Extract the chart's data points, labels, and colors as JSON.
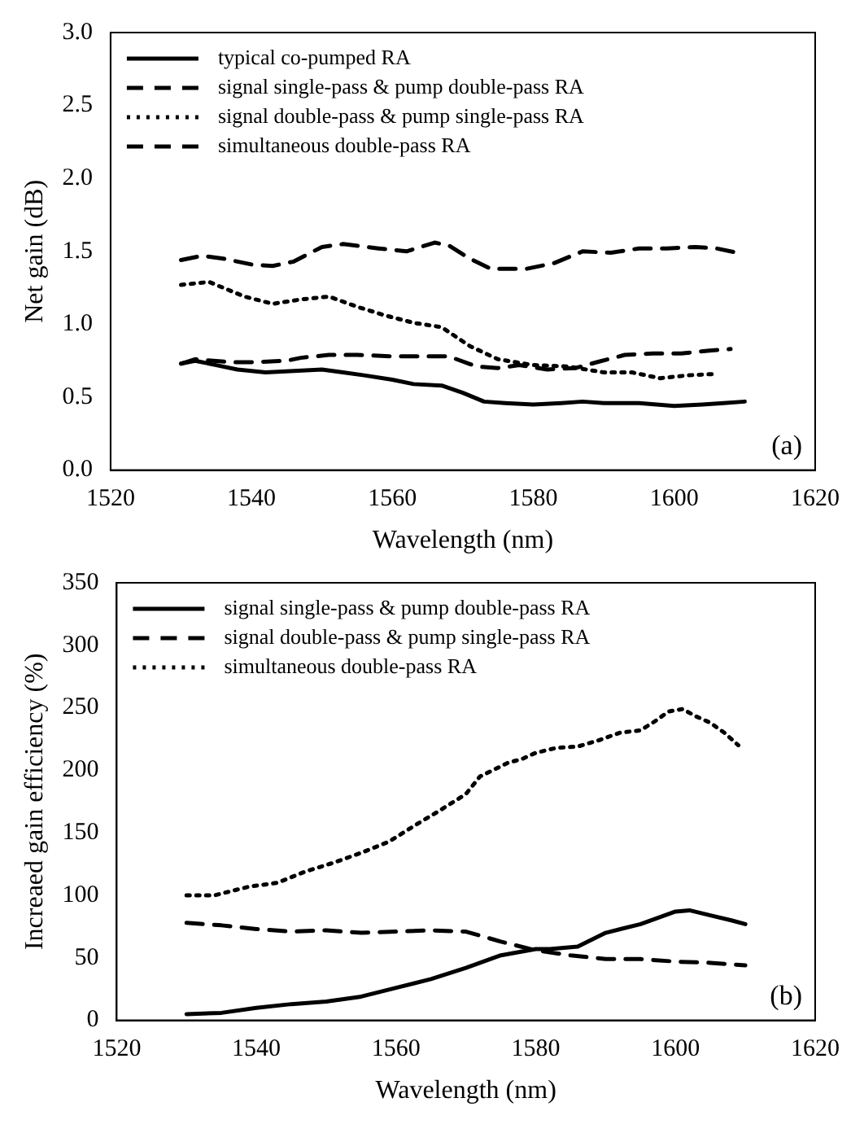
{
  "chart_data": [
    {
      "type": "line",
      "xlabel": "Wavelength (nm)",
      "ylabel": "Net gain (dB)",
      "xlim": [
        1520,
        1620
      ],
      "xticks": [
        1520,
        1540,
        1560,
        1580,
        1600,
        1620
      ],
      "ylim": [
        0,
        3
      ],
      "yticks": [
        {
          "value": 0,
          "label": "0.0"
        },
        {
          "value": 0.5,
          "label": "0.5"
        },
        {
          "value": 1,
          "label": "1.0"
        },
        {
          "value": 1.5,
          "label": "1.5"
        },
        {
          "value": 2,
          "label": "2.0"
        },
        {
          "value": 2.5,
          "label": "2.5"
        },
        {
          "value": 3,
          "label": "3.0"
        }
      ],
      "grid": false,
      "legend": "top left",
      "marker": "none",
      "annotations": [
        "(a)"
      ],
      "series": [
        {
          "name": "typical co-pumped RA",
          "color": "#000000",
          "line_style": "solid",
          "x": [
            1530,
            1532,
            1535,
            1538,
            1542,
            1546,
            1550,
            1553,
            1556,
            1560,
            1563,
            1567,
            1570,
            1573,
            1576,
            1580,
            1584,
            1587,
            1590,
            1595,
            1600,
            1604,
            1607,
            1610
          ],
          "values": [
            0.73,
            0.75,
            0.72,
            0.69,
            0.67,
            0.68,
            0.69,
            0.67,
            0.65,
            0.62,
            0.59,
            0.58,
            0.53,
            0.47,
            0.46,
            0.45,
            0.46,
            0.47,
            0.46,
            0.46,
            0.44,
            0.45,
            0.46,
            0.47
          ]
        },
        {
          "name": "signal single-pass & pump double-pass RA",
          "color": "#000000",
          "line_style": "dashed",
          "x": [
            1530,
            1532,
            1537,
            1540,
            1545,
            1547,
            1551,
            1555,
            1560,
            1565,
            1568,
            1572,
            1575,
            1578,
            1582,
            1586,
            1589,
            1593,
            1597,
            1601,
            1605,
            1608
          ],
          "values": [
            0.73,
            0.76,
            0.74,
            0.74,
            0.75,
            0.77,
            0.79,
            0.79,
            0.78,
            0.78,
            0.78,
            0.71,
            0.7,
            0.72,
            0.69,
            0.7,
            0.74,
            0.79,
            0.8,
            0.8,
            0.82,
            0.83
          ]
        },
        {
          "name": "signal double-pass & pump single-pass RA",
          "color": "#000000",
          "line_style": "dotted",
          "x": [
            1530,
            1534,
            1539,
            1543,
            1547,
            1551,
            1555,
            1559,
            1563,
            1567,
            1571,
            1575,
            1580,
            1585,
            1590,
            1594,
            1598,
            1602,
            1606
          ],
          "values": [
            1.27,
            1.29,
            1.19,
            1.14,
            1.17,
            1.19,
            1.12,
            1.06,
            1.01,
            0.98,
            0.85,
            0.76,
            0.72,
            0.71,
            0.67,
            0.67,
            0.63,
            0.65,
            0.66
          ]
        },
        {
          "name": "simultaneous double-pass RA",
          "color": "#000000",
          "line_style": "dashed",
          "x": [
            1530,
            1533,
            1536,
            1540,
            1543,
            1546,
            1550,
            1553,
            1558,
            1562,
            1566,
            1568,
            1571,
            1574,
            1579,
            1583,
            1587,
            1591,
            1595,
            1599,
            1603,
            1606,
            1609
          ],
          "values": [
            1.44,
            1.47,
            1.45,
            1.41,
            1.4,
            1.43,
            1.53,
            1.55,
            1.52,
            1.5,
            1.56,
            1.54,
            1.45,
            1.38,
            1.38,
            1.42,
            1.5,
            1.49,
            1.52,
            1.52,
            1.53,
            1.52,
            1.49
          ]
        }
      ]
    },
    {
      "type": "line",
      "xlabel": "Wavelength (nm)",
      "ylabel": "Increaed gain efficiency (%)",
      "xlim": [
        1520,
        1620
      ],
      "xticks": [
        1520,
        1540,
        1560,
        1580,
        1600,
        1620
      ],
      "ylim": [
        0,
        350
      ],
      "yticks": [
        0,
        50,
        100,
        150,
        200,
        250,
        300,
        350
      ],
      "grid": false,
      "legend": "top left",
      "marker": "none",
      "annotations": [
        "(b)"
      ],
      "series": [
        {
          "name": "signal single-pass & pump double-pass RA",
          "color": "#000000",
          "line_style": "solid",
          "x": [
            1530,
            1535,
            1540,
            1545,
            1550,
            1555,
            1560,
            1565,
            1570,
            1575,
            1580,
            1582,
            1586,
            1590,
            1595,
            1600,
            1602,
            1605,
            1608,
            1610
          ],
          "values": [
            5,
            6,
            10,
            13,
            15,
            19,
            26,
            33,
            42,
            52,
            57,
            57,
            59,
            70,
            77,
            87,
            88,
            84,
            80,
            77
          ]
        },
        {
          "name": "signal double-pass & pump single-pass RA",
          "color": "#000000",
          "line_style": "dashed",
          "x": [
            1530,
            1535,
            1540,
            1545,
            1550,
            1555,
            1560,
            1565,
            1570,
            1575,
            1580,
            1585,
            1590,
            1595,
            1600,
            1605,
            1610
          ],
          "values": [
            78,
            76,
            73,
            71,
            72,
            70,
            71,
            72,
            71,
            63,
            56,
            52,
            49,
            49,
            47,
            46,
            44
          ]
        },
        {
          "name": "simultaneous double-pass RA",
          "color": "#000000",
          "line_style": "dotted",
          "x": [
            1530,
            1534,
            1539,
            1543,
            1547,
            1551,
            1555,
            1559,
            1563,
            1566,
            1570,
            1572,
            1576,
            1578,
            1580,
            1583,
            1586,
            1589,
            1592,
            1595,
            1597,
            1599,
            1601,
            1603,
            1605,
            1607,
            1609
          ],
          "values": [
            100,
            100,
            107,
            110,
            119,
            126,
            134,
            143,
            157,
            167,
            181,
            195,
            206,
            209,
            214,
            218,
            219,
            224,
            230,
            232,
            239,
            247,
            249,
            243,
            238,
            230,
            220
          ]
        }
      ]
    }
  ]
}
